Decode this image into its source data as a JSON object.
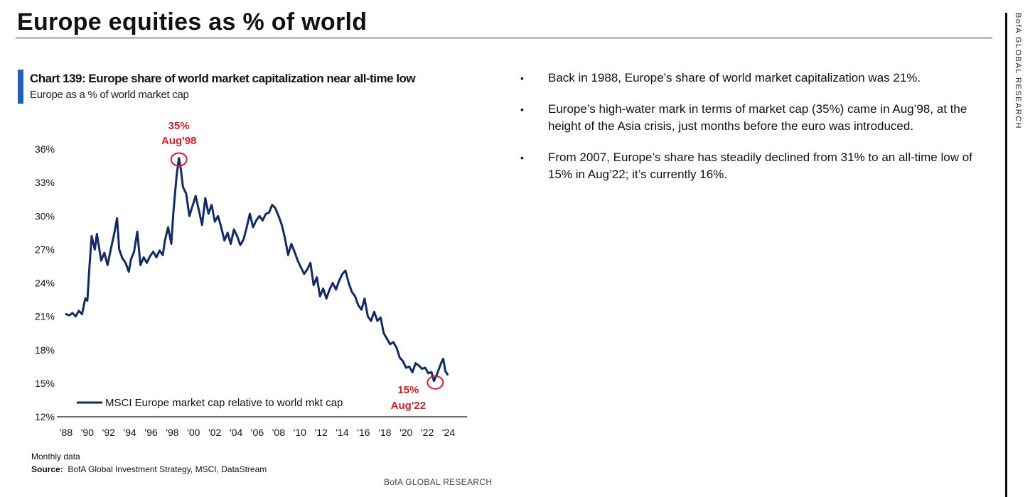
{
  "page": {
    "title": "Europe equities as % of world",
    "side_brand": "BofA GLOBAL RESEARCH",
    "footer_brand": "BofA GLOBAL RESEARCH"
  },
  "bullets": [
    "Back in 1988, Europe’s share of world market capitalization was 21%.",
    "Europe’s high-water mark in terms of market cap (35%) came in Aug’98, at the height of the Asia crisis, just months before the euro was introduced.",
    "From 2007, Europe’s share has steadily declined from 31% to an all-time low of 15% in Aug’22; it’s currently 16%."
  ],
  "footnote": {
    "note": "Monthly data",
    "source_label": "Source:",
    "source_text": "BofA Global Investment Strategy, MSCI, DataStream"
  },
  "colors": {
    "line": "#142a64",
    "highlight": "#d0202a",
    "accent_bar": "#1f5fbf"
  },
  "chart_data": {
    "type": "line",
    "title": "Chart 139: Europe share of world market capitalization near all-time low",
    "subtitle": "Europe as a % of world market cap",
    "xlabel": "",
    "ylabel": "",
    "x_range": [
      1988,
      2024.5
    ],
    "ylim": [
      12,
      36
    ],
    "y_ticks": [
      12,
      15,
      18,
      21,
      24,
      27,
      30,
      33,
      36
    ],
    "y_tick_labels": [
      "12%",
      "15%",
      "18%",
      "21%",
      "24%",
      "27%",
      "30%",
      "33%",
      "36%"
    ],
    "x_ticks": [
      1988,
      1990,
      1992,
      1994,
      1996,
      1998,
      2000,
      2002,
      2004,
      2006,
      2008,
      2010,
      2012,
      2014,
      2016,
      2018,
      2020,
      2022,
      2024
    ],
    "x_tick_labels": [
      "'88",
      "'90",
      "'92",
      "'94",
      "'96",
      "'98",
      "'00",
      "'02",
      "'04",
      "'06",
      "'08",
      "'10",
      "'12",
      "'14",
      "'16",
      "'18",
      "'20",
      "'22",
      "'24"
    ],
    "legend": {
      "label": "MSCI Europe market cap relative to world mkt cap",
      "position": "bottom-left"
    },
    "series": [
      {
        "name": "MSCI Europe market cap relative to world mkt cap",
        "x": [
          1988.0,
          1988.3,
          1988.6,
          1988.9,
          1989.2,
          1989.5,
          1989.8,
          1990.0,
          1990.2,
          1990.4,
          1990.7,
          1990.9,
          1991.1,
          1991.3,
          1991.6,
          1991.9,
          1992.2,
          1992.5,
          1992.8,
          1993.0,
          1993.3,
          1993.6,
          1993.9,
          1994.1,
          1994.4,
          1994.7,
          1995.0,
          1995.3,
          1995.6,
          1995.9,
          1996.2,
          1996.5,
          1996.8,
          1997.1,
          1997.3,
          1997.6,
          1997.9,
          1998.1,
          1998.4,
          1998.62,
          1998.8,
          1999.0,
          1999.3,
          1999.6,
          1999.9,
          2000.2,
          2000.5,
          2000.8,
          2001.1,
          2001.4,
          2001.7,
          2002.0,
          2002.3,
          2002.6,
          2002.9,
          2003.2,
          2003.5,
          2003.8,
          2004.1,
          2004.4,
          2004.7,
          2005.0,
          2005.3,
          2005.6,
          2005.9,
          2006.2,
          2006.5,
          2006.8,
          2007.1,
          2007.4,
          2007.7,
          2008.0,
          2008.3,
          2008.6,
          2008.9,
          2009.2,
          2009.5,
          2009.8,
          2010.1,
          2010.4,
          2010.7,
          2011.0,
          2011.3,
          2011.6,
          2011.9,
          2012.2,
          2012.5,
          2012.8,
          2013.1,
          2013.4,
          2013.7,
          2014.0,
          2014.3,
          2014.6,
          2014.9,
          2015.2,
          2015.5,
          2015.8,
          2016.1,
          2016.4,
          2016.7,
          2017.0,
          2017.3,
          2017.6,
          2017.9,
          2018.2,
          2018.5,
          2018.8,
          2019.1,
          2019.4,
          2019.7,
          2020.0,
          2020.3,
          2020.6,
          2020.9,
          2021.2,
          2021.5,
          2021.8,
          2022.1,
          2022.4,
          2022.62,
          2022.9,
          2023.1,
          2023.3,
          2023.5,
          2023.7,
          2023.9
        ],
        "values": [
          21.2,
          21.1,
          21.3,
          21.0,
          21.5,
          21.2,
          22.6,
          22.4,
          25.5,
          28.2,
          27.0,
          28.4,
          27.2,
          26.0,
          26.7,
          25.6,
          27.0,
          28.3,
          29.8,
          27.0,
          26.2,
          25.8,
          25.0,
          26.1,
          26.8,
          28.6,
          25.6,
          26.3,
          25.8,
          26.4,
          26.8,
          26.3,
          26.9,
          26.5,
          27.8,
          29.0,
          27.5,
          30.3,
          33.6,
          35.2,
          34.2,
          32.6,
          32.0,
          30.0,
          30.9,
          31.8,
          30.5,
          29.2,
          31.6,
          30.2,
          31.0,
          29.5,
          30.0,
          29.0,
          27.8,
          28.5,
          27.5,
          28.8,
          28.2,
          27.4,
          27.9,
          29.0,
          30.2,
          29.0,
          29.6,
          30.0,
          29.6,
          30.2,
          30.3,
          31.0,
          30.7,
          30.0,
          29.2,
          28.0,
          26.5,
          27.5,
          26.8,
          26.0,
          25.4,
          24.8,
          25.2,
          25.8,
          23.8,
          24.5,
          22.8,
          23.5,
          22.6,
          23.4,
          24.0,
          23.4,
          24.2,
          24.8,
          25.1,
          24.0,
          23.2,
          22.8,
          22.0,
          21.6,
          22.6,
          21.0,
          20.6,
          21.4,
          20.6,
          20.9,
          19.5,
          19.0,
          18.5,
          18.7,
          18.2,
          17.3,
          17.0,
          16.4,
          16.5,
          16.0,
          16.8,
          16.6,
          16.3,
          16.4,
          15.9,
          16.0,
          15.2,
          15.8,
          16.3,
          16.8,
          17.2,
          16.1,
          15.8
        ]
      }
    ],
    "annotations": [
      {
        "x": 1998.62,
        "y": 35.2,
        "value_label": "35%",
        "date_label": "Aug'98"
      },
      {
        "x": 2022.62,
        "y": 15.2,
        "value_label": "15%",
        "date_label": "Aug'22"
      }
    ]
  }
}
